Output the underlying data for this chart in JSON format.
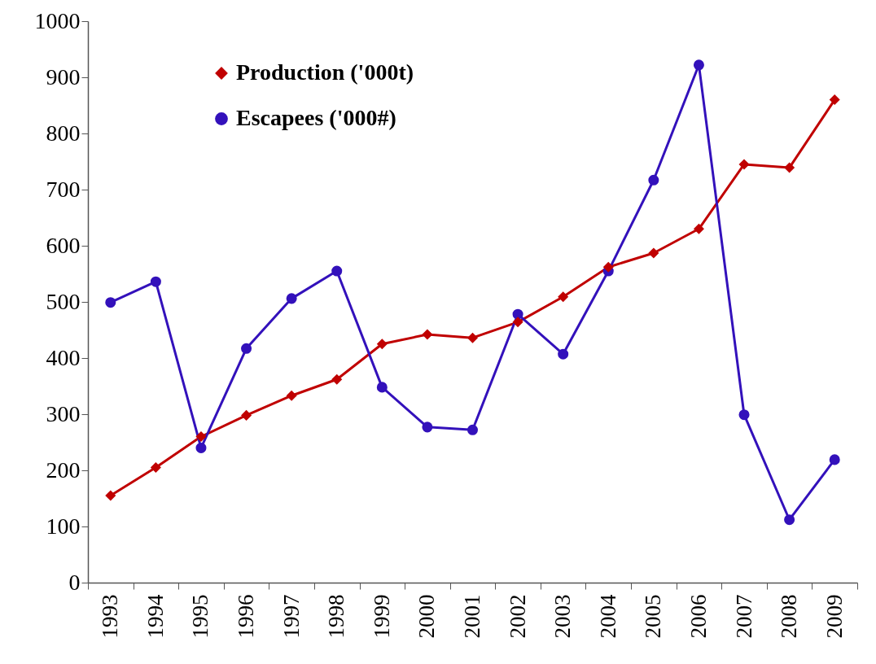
{
  "chart_data": {
    "type": "line",
    "categories": [
      "1993",
      "1994",
      "1995",
      "1996",
      "1997",
      "1998",
      "1999",
      "2000",
      "2001",
      "2002",
      "2003",
      "2004",
      "2005",
      "2006",
      "2007",
      "2008",
      "2009"
    ],
    "series": [
      {
        "name": "Production ('000t)",
        "color": "#c00000",
        "marker": "diamond",
        "values": [
          155,
          205,
          260,
          298,
          333,
          362,
          425,
          442,
          436,
          464,
          509,
          562,
          587,
          630,
          745,
          739,
          860
        ]
      },
      {
        "name": "Escapees ('000#)",
        "color": "#3311bb",
        "marker": "circle",
        "values": [
          499,
          536,
          240,
          417,
          506,
          555,
          348,
          277,
          272,
          478,
          407,
          555,
          717,
          922,
          299,
          112,
          219
        ]
      }
    ],
    "ylim": [
      0,
      1000
    ],
    "yticks": [
      0,
      100,
      200,
      300,
      400,
      500,
      600,
      700,
      800,
      900,
      1000
    ],
    "grid": false,
    "legend": "top left"
  }
}
